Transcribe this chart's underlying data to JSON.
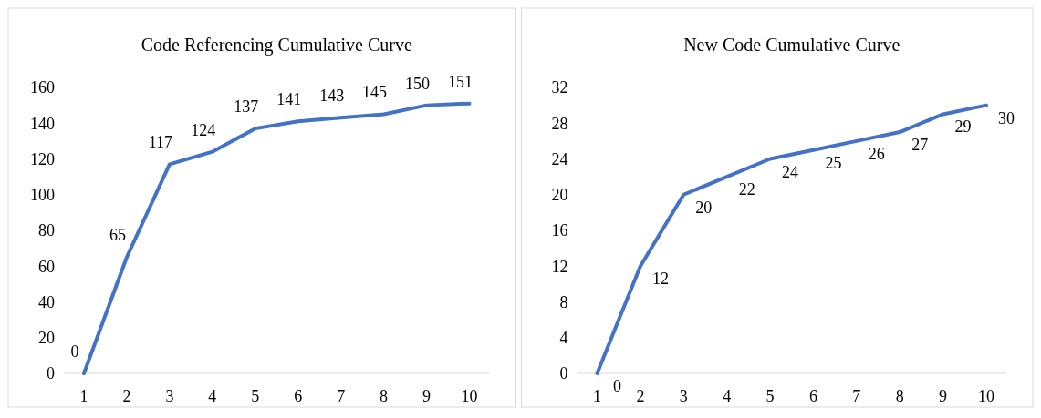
{
  "chart_data": [
    {
      "type": "line",
      "title": "Code Referencing Cumulative Curve",
      "categories": [
        "1",
        "2",
        "3",
        "4",
        "5",
        "6",
        "7",
        "8",
        "9",
        "10"
      ],
      "series": [
        {
          "color": "#4472c4",
          "values": [
            0,
            65,
            117,
            124,
            137,
            141,
            143,
            145,
            150,
            151
          ]
        }
      ],
      "ylim": [
        0,
        160
      ],
      "yticks": [
        0,
        20,
        40,
        60,
        80,
        100,
        120,
        140,
        160
      ],
      "data_labels": true
    },
    {
      "type": "line",
      "title": "New Code Cumulative Curve",
      "categories": [
        "1",
        "2",
        "3",
        "4",
        "5",
        "6",
        "7",
        "8",
        "9",
        "10"
      ],
      "series": [
        {
          "color": "#4472c4",
          "values": [
            0,
            12,
            20,
            22,
            24,
            25,
            26,
            27,
            29,
            30
          ]
        }
      ],
      "ylim": [
        0,
        32
      ],
      "yticks": [
        0,
        4,
        8,
        12,
        16,
        20,
        24,
        28,
        32
      ],
      "data_labels": true
    }
  ]
}
